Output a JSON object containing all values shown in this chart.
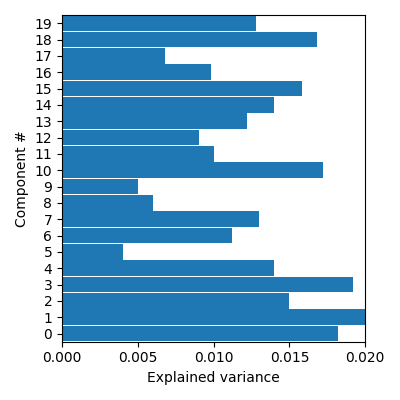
{
  "components": [
    0,
    1,
    2,
    3,
    4,
    5,
    6,
    7,
    8,
    9,
    10,
    11,
    12,
    13,
    14,
    15,
    16,
    17,
    18,
    19
  ],
  "values": [
    0.0182,
    0.02,
    0.015,
    0.0192,
    0.014,
    0.004,
    0.0112,
    0.013,
    0.006,
    0.005,
    0.0172,
    0.01,
    0.009,
    0.0122,
    0.014,
    0.0158,
    0.0098,
    0.0068,
    0.0168,
    0.0128
  ],
  "bar_color": "#1f77b4",
  "xlabel": "Explained variance",
  "ylabel": "Component #",
  "xlim": [
    0,
    0.02
  ],
  "figsize": [
    4.0,
    4.0
  ],
  "dpi": 100,
  "bar_height": 0.95
}
